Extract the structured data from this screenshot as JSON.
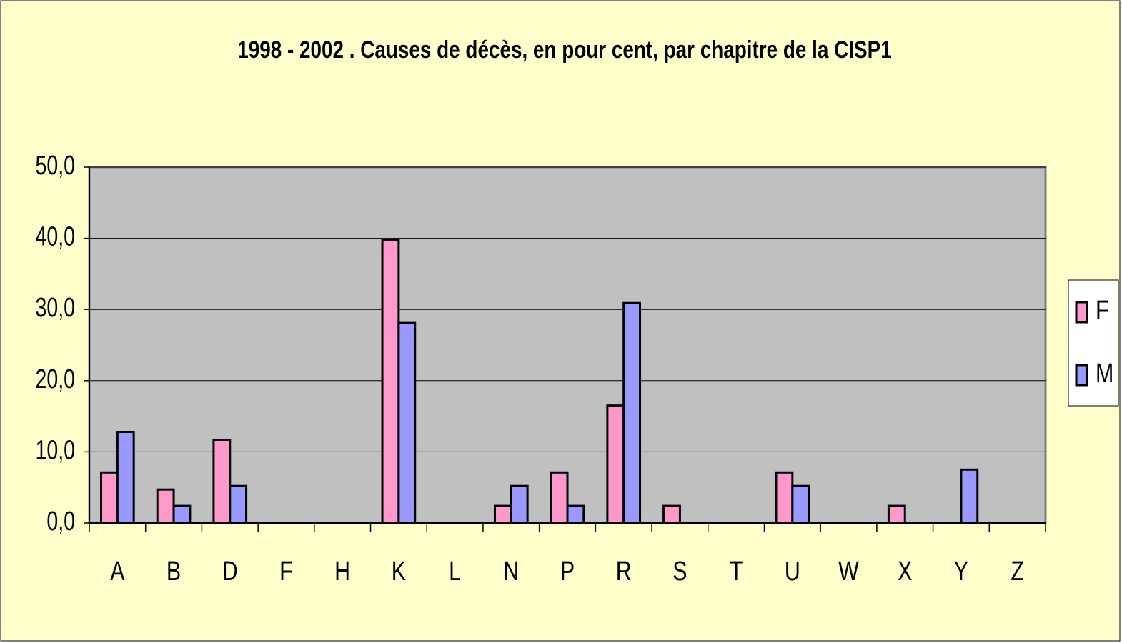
{
  "chart_data": {
    "type": "bar",
    "title": "1998 - 2002 . Causes de décès, en pour cent, par chapitre de la CISP1",
    "categories": [
      "A",
      "B",
      "D",
      "F",
      "H",
      "K",
      "L",
      "N",
      "P",
      "R",
      "S",
      "T",
      "U",
      "W",
      "X",
      "Y",
      "Z"
    ],
    "series": [
      {
        "name": "F",
        "color": "#ff99cc",
        "values": [
          7.1,
          4.7,
          11.7,
          0,
          0,
          39.8,
          0,
          2.4,
          7.1,
          16.5,
          2.4,
          0,
          7.1,
          0,
          2.4,
          0,
          0
        ]
      },
      {
        "name": "M",
        "color": "#9999ff",
        "values": [
          12.8,
          2.4,
          5.2,
          0,
          0,
          28.1,
          0,
          5.2,
          2.4,
          30.9,
          0,
          0,
          5.2,
          0,
          0,
          7.5,
          0
        ]
      }
    ],
    "ylim": [
      0,
      50
    ],
    "yticks": [
      {
        "value": 0,
        "label": "0,0"
      },
      {
        "value": 10,
        "label": "10,0"
      },
      {
        "value": 20,
        "label": "20,0"
      },
      {
        "value": 30,
        "label": "30,0"
      },
      {
        "value": 40,
        "label": "40,0"
      },
      {
        "value": 50,
        "label": "50,0"
      }
    ],
    "grid": true,
    "legend": "right"
  }
}
